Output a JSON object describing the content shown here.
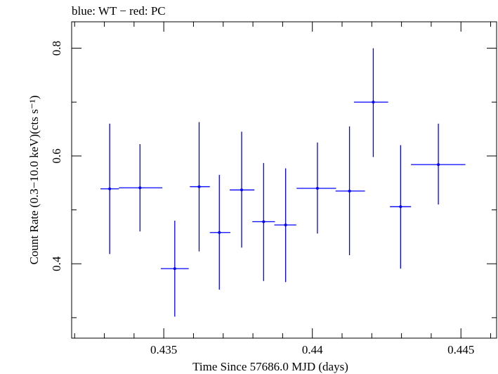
{
  "chart_data": {
    "type": "scatter",
    "title": "blue: WT − red: PC",
    "xlabel": "Time Since 57686.0 MJD (days)",
    "ylabel": "Count Rate (0.3−10.0 keV)(cts s⁻¹)",
    "xlim": [
      0.4319,
      0.4462
    ],
    "ylim": [
      0.262,
      0.849
    ],
    "xticks": [
      {
        "value": 0.435,
        "label": "0.435"
      },
      {
        "value": 0.44,
        "label": "0.44"
      },
      {
        "value": 0.445,
        "label": "0.445"
      }
    ],
    "yticks": [
      {
        "value": 0.4,
        "label": "0.4"
      },
      {
        "value": 0.6,
        "label": "0.6"
      },
      {
        "value": 0.8,
        "label": "0.8"
      }
    ],
    "grid": false,
    "color": "#0000ff",
    "series": [
      {
        "points": [
          {
            "x": 0.43318,
            "y": 0.539,
            "xlo": 0.43287,
            "xhi": 0.43349,
            "ylo": 0.418,
            "yhi": 0.66
          },
          {
            "x": 0.4342,
            "y": 0.541,
            "xlo": 0.43349,
            "xhi": 0.43495,
            "ylo": 0.46,
            "yhi": 0.622
          },
          {
            "x": 0.43537,
            "y": 0.391,
            "xlo": 0.4349,
            "xhi": 0.43584,
            "ylo": 0.302,
            "yhi": 0.48
          },
          {
            "x": 0.43619,
            "y": 0.543,
            "xlo": 0.43588,
            "xhi": 0.43655,
            "ylo": 0.423,
            "yhi": 0.663
          },
          {
            "x": 0.43687,
            "y": 0.458,
            "xlo": 0.43655,
            "xhi": 0.43724,
            "ylo": 0.352,
            "yhi": 0.565
          },
          {
            "x": 0.43762,
            "y": 0.537,
            "xlo": 0.43722,
            "xhi": 0.43805,
            "ylo": 0.43,
            "yhi": 0.645
          },
          {
            "x": 0.43836,
            "y": 0.478,
            "xlo": 0.43798,
            "xhi": 0.43874,
            "ylo": 0.368,
            "yhi": 0.587
          },
          {
            "x": 0.4391,
            "y": 0.472,
            "xlo": 0.43872,
            "xhi": 0.43946,
            "ylo": 0.366,
            "yhi": 0.577
          },
          {
            "x": 0.44017,
            "y": 0.54,
            "xlo": 0.43947,
            "xhi": 0.4408,
            "ylo": 0.456,
            "yhi": 0.625
          },
          {
            "x": 0.44125,
            "y": 0.535,
            "xlo": 0.44078,
            "xhi": 0.44177,
            "ylo": 0.416,
            "yhi": 0.655
          },
          {
            "x": 0.44205,
            "y": 0.7,
            "xlo": 0.4414,
            "xhi": 0.44255,
            "ylo": 0.598,
            "yhi": 0.8
          },
          {
            "x": 0.44297,
            "y": 0.506,
            "xlo": 0.44261,
            "xhi": 0.44332,
            "ylo": 0.391,
            "yhi": 0.62
          },
          {
            "x": 0.44424,
            "y": 0.584,
            "xlo": 0.44332,
            "xhi": 0.44515,
            "ylo": 0.51,
            "yhi": 0.66
          }
        ]
      }
    ]
  }
}
